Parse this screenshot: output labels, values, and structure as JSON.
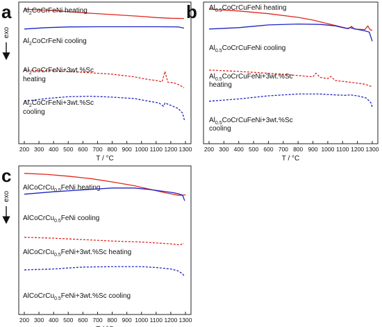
{
  "chart_data": [
    {
      "panel": "a",
      "type": "line",
      "xlabel": "T / °C",
      "ylabel": "exo",
      "x_ticks": [
        "200",
        "300",
        "400",
        "500",
        "600",
        "700",
        "800",
        "900",
        "1000",
        "1100",
        "1200",
        "1300"
      ],
      "xlim": [
        200,
        1300
      ],
      "series": [
        {
          "name": "Al2CoCrFeNi heating",
          "label_main": "Al",
          "label_sub": "2",
          "label_rest": "CoCrFeNi heating",
          "color": "#e0261c",
          "style": "solid",
          "points": [
            [
              200,
              0.05
            ],
            [
              400,
              0.08
            ],
            [
              600,
              0.13
            ],
            [
              800,
              0.17
            ],
            [
              1000,
              0.21
            ],
            [
              1100,
              0.235
            ],
            [
              1200,
              0.25
            ],
            [
              1290,
              0.255
            ]
          ]
        },
        {
          "name": "Al2CoCrFeNi cooling",
          "label_main": "Al",
          "label_sub": "2",
          "label_rest": "CoCrFeNi cooling",
          "color": "#1c23c4",
          "style": "solid",
          "points": [
            [
              200,
              0.3
            ],
            [
              350,
              0.27
            ],
            [
              500,
              0.255
            ],
            [
              700,
              0.25
            ],
            [
              900,
              0.25
            ],
            [
              1100,
              0.25
            ],
            [
              1250,
              0.255
            ],
            [
              1290,
              0.28
            ]
          ]
        },
        {
          "name": "Al2CoCrFeNi+3wt.%Sc heating",
          "label_main": "Al",
          "label_sub": "2",
          "label_rest": "CoCrFeNi+3wt.%Sc",
          "label_line2": "heating",
          "color": "#e0261c",
          "style": "dashed",
          "points": [
            [
              200,
              0.57
            ],
            [
              400,
              0.59
            ],
            [
              600,
              0.62
            ],
            [
              800,
              0.66
            ],
            [
              950,
              0.72
            ],
            [
              1000,
              0.75
            ],
            [
              1050,
              0.78
            ],
            [
              1100,
              0.8
            ],
            [
              1140,
              0.83
            ],
            [
              1160,
              0.6
            ],
            [
              1180,
              0.84
            ],
            [
              1220,
              0.85
            ],
            [
              1260,
              0.9
            ],
            [
              1290,
              0.96
            ]
          ]
        },
        {
          "name": "Al2CoCrFeNi+3wt.%Sc cooling",
          "label_main": "Al",
          "label_sub": "2",
          "label_rest": "CoCrFeNi+3wt.%Sc",
          "label_line2": "cooling",
          "color": "#1c23c4",
          "style": "dashed",
          "points": [
            [
              200,
              0.86
            ],
            [
              350,
              0.8
            ],
            [
              500,
              0.76
            ],
            [
              650,
              0.75
            ],
            [
              800,
              0.77
            ],
            [
              950,
              0.8
            ],
            [
              1050,
              0.86
            ],
            [
              1120,
              0.9
            ],
            [
              1150,
              0.97
            ],
            [
              1160,
              0.9
            ],
            [
              1200,
              0.95
            ],
            [
              1250,
              1.02
            ],
            [
              1280,
              1.12
            ],
            [
              1295,
              1.3
            ]
          ]
        }
      ]
    },
    {
      "panel": "b",
      "type": "line",
      "xlabel": "T / °C",
      "x_ticks": [
        "200",
        "300",
        "400",
        "500",
        "600",
        "700",
        "800",
        "900",
        "1000",
        "1100",
        "1200",
        "1300"
      ],
      "xlim": [
        200,
        1300
      ],
      "series": [
        {
          "name": "Al0.5CoCrCuFeNi heating",
          "label_main": "Al",
          "label_sub": "0.5",
          "label_rest": "CoCrCuFeNi heating",
          "color": "#e0261c",
          "style": "solid",
          "points": [
            [
              200,
              0.0
            ],
            [
              400,
              0.04
            ],
            [
              600,
              0.1
            ],
            [
              800,
              0.18
            ],
            [
              900,
              0.24
            ],
            [
              1000,
              0.32
            ],
            [
              1100,
              0.4
            ],
            [
              1140,
              0.43
            ],
            [
              1160,
              0.38
            ],
            [
              1180,
              0.44
            ],
            [
              1250,
              0.45
            ],
            [
              1270,
              0.37
            ],
            [
              1285,
              0.45
            ],
            [
              1300,
              0.47
            ]
          ]
        },
        {
          "name": "Al0.5CoCrCuFeNi cooling",
          "label_main": "Al",
          "label_sub": "0.5",
          "label_rest": "CoCrCuFeNi cooling",
          "color": "#1c23c4",
          "style": "solid",
          "points": [
            [
              200,
              0.53
            ],
            [
              400,
              0.5
            ],
            [
              600,
              0.44
            ],
            [
              800,
              0.42
            ],
            [
              950,
              0.43
            ],
            [
              1050,
              0.46
            ],
            [
              1100,
              0.5
            ],
            [
              1130,
              0.52
            ],
            [
              1150,
              0.5
            ],
            [
              1200,
              0.54
            ],
            [
              1250,
              0.57
            ],
            [
              1280,
              0.6
            ],
            [
              1300,
              0.8
            ]
          ]
        },
        {
          "name": "Al0.5CoCrCuFeNi+3wt.%Sc heating",
          "label_main": "Al",
          "label_sub": "0.5",
          "label_rest": "CoCrCuFeNi+3wt.%Sc",
          "label_line2": "heating",
          "color": "#e0261c",
          "style": "dashed",
          "points": [
            [
              200,
              0.55
            ],
            [
              400,
              0.58
            ],
            [
              600,
              0.62
            ],
            [
              800,
              0.67
            ],
            [
              900,
              0.7
            ],
            [
              920,
              0.62
            ],
            [
              950,
              0.71
            ],
            [
              1000,
              0.74
            ],
            [
              1020,
              0.69
            ],
            [
              1050,
              0.78
            ],
            [
              1150,
              0.82
            ],
            [
              1250,
              0.86
            ],
            [
              1300,
              0.92
            ]
          ]
        },
        {
          "name": "Al0.5CoCrCuFeNi+3wt.%Sc cooling",
          "label_main": "Al",
          "label_sub": "0.5",
          "label_rest": "CoCrCuFeNi+3wt.%Sc",
          "label_line2": "cooling",
          "color": "#1c23c4",
          "style": "dashed",
          "points": [
            [
              200,
              1.02
            ],
            [
              400,
              0.97
            ],
            [
              600,
              0.9
            ],
            [
              800,
              0.86
            ],
            [
              950,
              0.86
            ],
            [
              1050,
              0.88
            ],
            [
              1120,
              0.89
            ],
            [
              1150,
              0.88
            ],
            [
              1200,
              0.9
            ],
            [
              1260,
              0.95
            ],
            [
              1290,
              1.05
            ],
            [
              1300,
              1.15
            ]
          ]
        }
      ]
    },
    {
      "panel": "c",
      "type": "line",
      "xlabel": "T / °C",
      "ylabel": "exo",
      "x_ticks": [
        "200",
        "300",
        "400",
        "500",
        "600",
        "700",
        "800",
        "900",
        "1000",
        "1100",
        "1200",
        "1300"
      ],
      "xlim": [
        200,
        1300
      ],
      "series": [
        {
          "name": "AlCoCrCu0.5FeNi heating",
          "label_main": "AlCoCrCu",
          "label_sub": "0.5",
          "label_rest": "FeNi heating",
          "color": "#e0261c",
          "style": "solid",
          "points": [
            [
              200,
              0.04
            ],
            [
              350,
              0.06
            ],
            [
              500,
              0.1
            ],
            [
              650,
              0.15
            ],
            [
              800,
              0.22
            ],
            [
              950,
              0.3
            ],
            [
              1050,
              0.37
            ],
            [
              1150,
              0.44
            ],
            [
              1250,
              0.5
            ],
            [
              1280,
              0.5
            ],
            [
              1300,
              0.49
            ]
          ]
        },
        {
          "name": "AlCoCrCu0.5FeNi cooling",
          "label_main": "AlCoCrCu",
          "label_sub": "0.5",
          "label_rest": "FeNi cooling",
          "color": "#1c23c4",
          "style": "solid",
          "points": [
            [
              200,
              0.48
            ],
            [
              400,
              0.43
            ],
            [
              600,
              0.39
            ],
            [
              800,
              0.35
            ],
            [
              950,
              0.35
            ],
            [
              1050,
              0.38
            ],
            [
              1150,
              0.42
            ],
            [
              1220,
              0.45
            ],
            [
              1250,
              0.47
            ],
            [
              1280,
              0.5
            ],
            [
              1295,
              0.62
            ]
          ]
        },
        {
          "name": "AlCoCrCu0.5FeNi+3wt.%Sc heating",
          "label_main": "AlCoCrCu",
          "label_sub": "0.5",
          "label_rest": "FeNi+3wt.%Sc heating",
          "color": "#e0261c",
          "style": "dashed",
          "points": [
            [
              200,
              0.6
            ],
            [
              400,
              0.62
            ],
            [
              600,
              0.65
            ],
            [
              800,
              0.68
            ],
            [
              900,
              0.69
            ],
            [
              1000,
              0.7
            ],
            [
              1100,
              0.72
            ],
            [
              1200,
              0.74
            ],
            [
              1260,
              0.76
            ],
            [
              1290,
              0.73
            ]
          ]
        },
        {
          "name": "AlCoCrCu0.5FeNi+3wt.%Sc cooling",
          "label_main": "AlCoCrCu",
          "label_sub": "0.5",
          "label_rest": "FeNi+3wt.%Sc cooling",
          "color": "#1c23c4",
          "style": "dashed",
          "points": [
            [
              200,
              0.78
            ],
            [
              400,
              0.76
            ],
            [
              600,
              0.72
            ],
            [
              800,
              0.71
            ],
            [
              1000,
              0.71
            ],
            [
              1100,
              0.73
            ],
            [
              1200,
              0.76
            ],
            [
              1250,
              0.8
            ],
            [
              1280,
              0.86
            ],
            [
              1295,
              0.92
            ]
          ]
        }
      ]
    }
  ]
}
